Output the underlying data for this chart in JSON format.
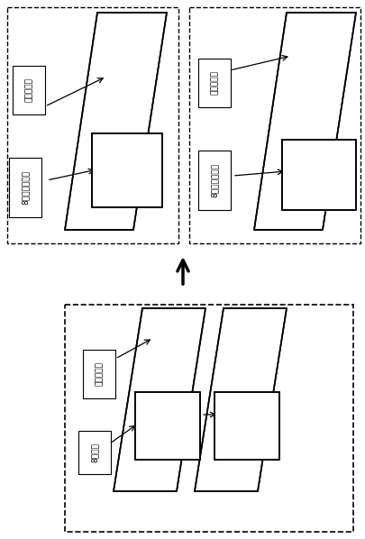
{
  "bg_color": "#ffffff",
  "top_left_label1": "圆锥形磁铁",
  "top_left_label2": "8字线圈上回路",
  "top_right_label1": "圆锥形磁铁",
  "top_right_label2": "8字线圈下回路",
  "bottom_label1": "圆锥形磁铁",
  "bottom_label2": "8字线圈",
  "font_size": 6.5
}
